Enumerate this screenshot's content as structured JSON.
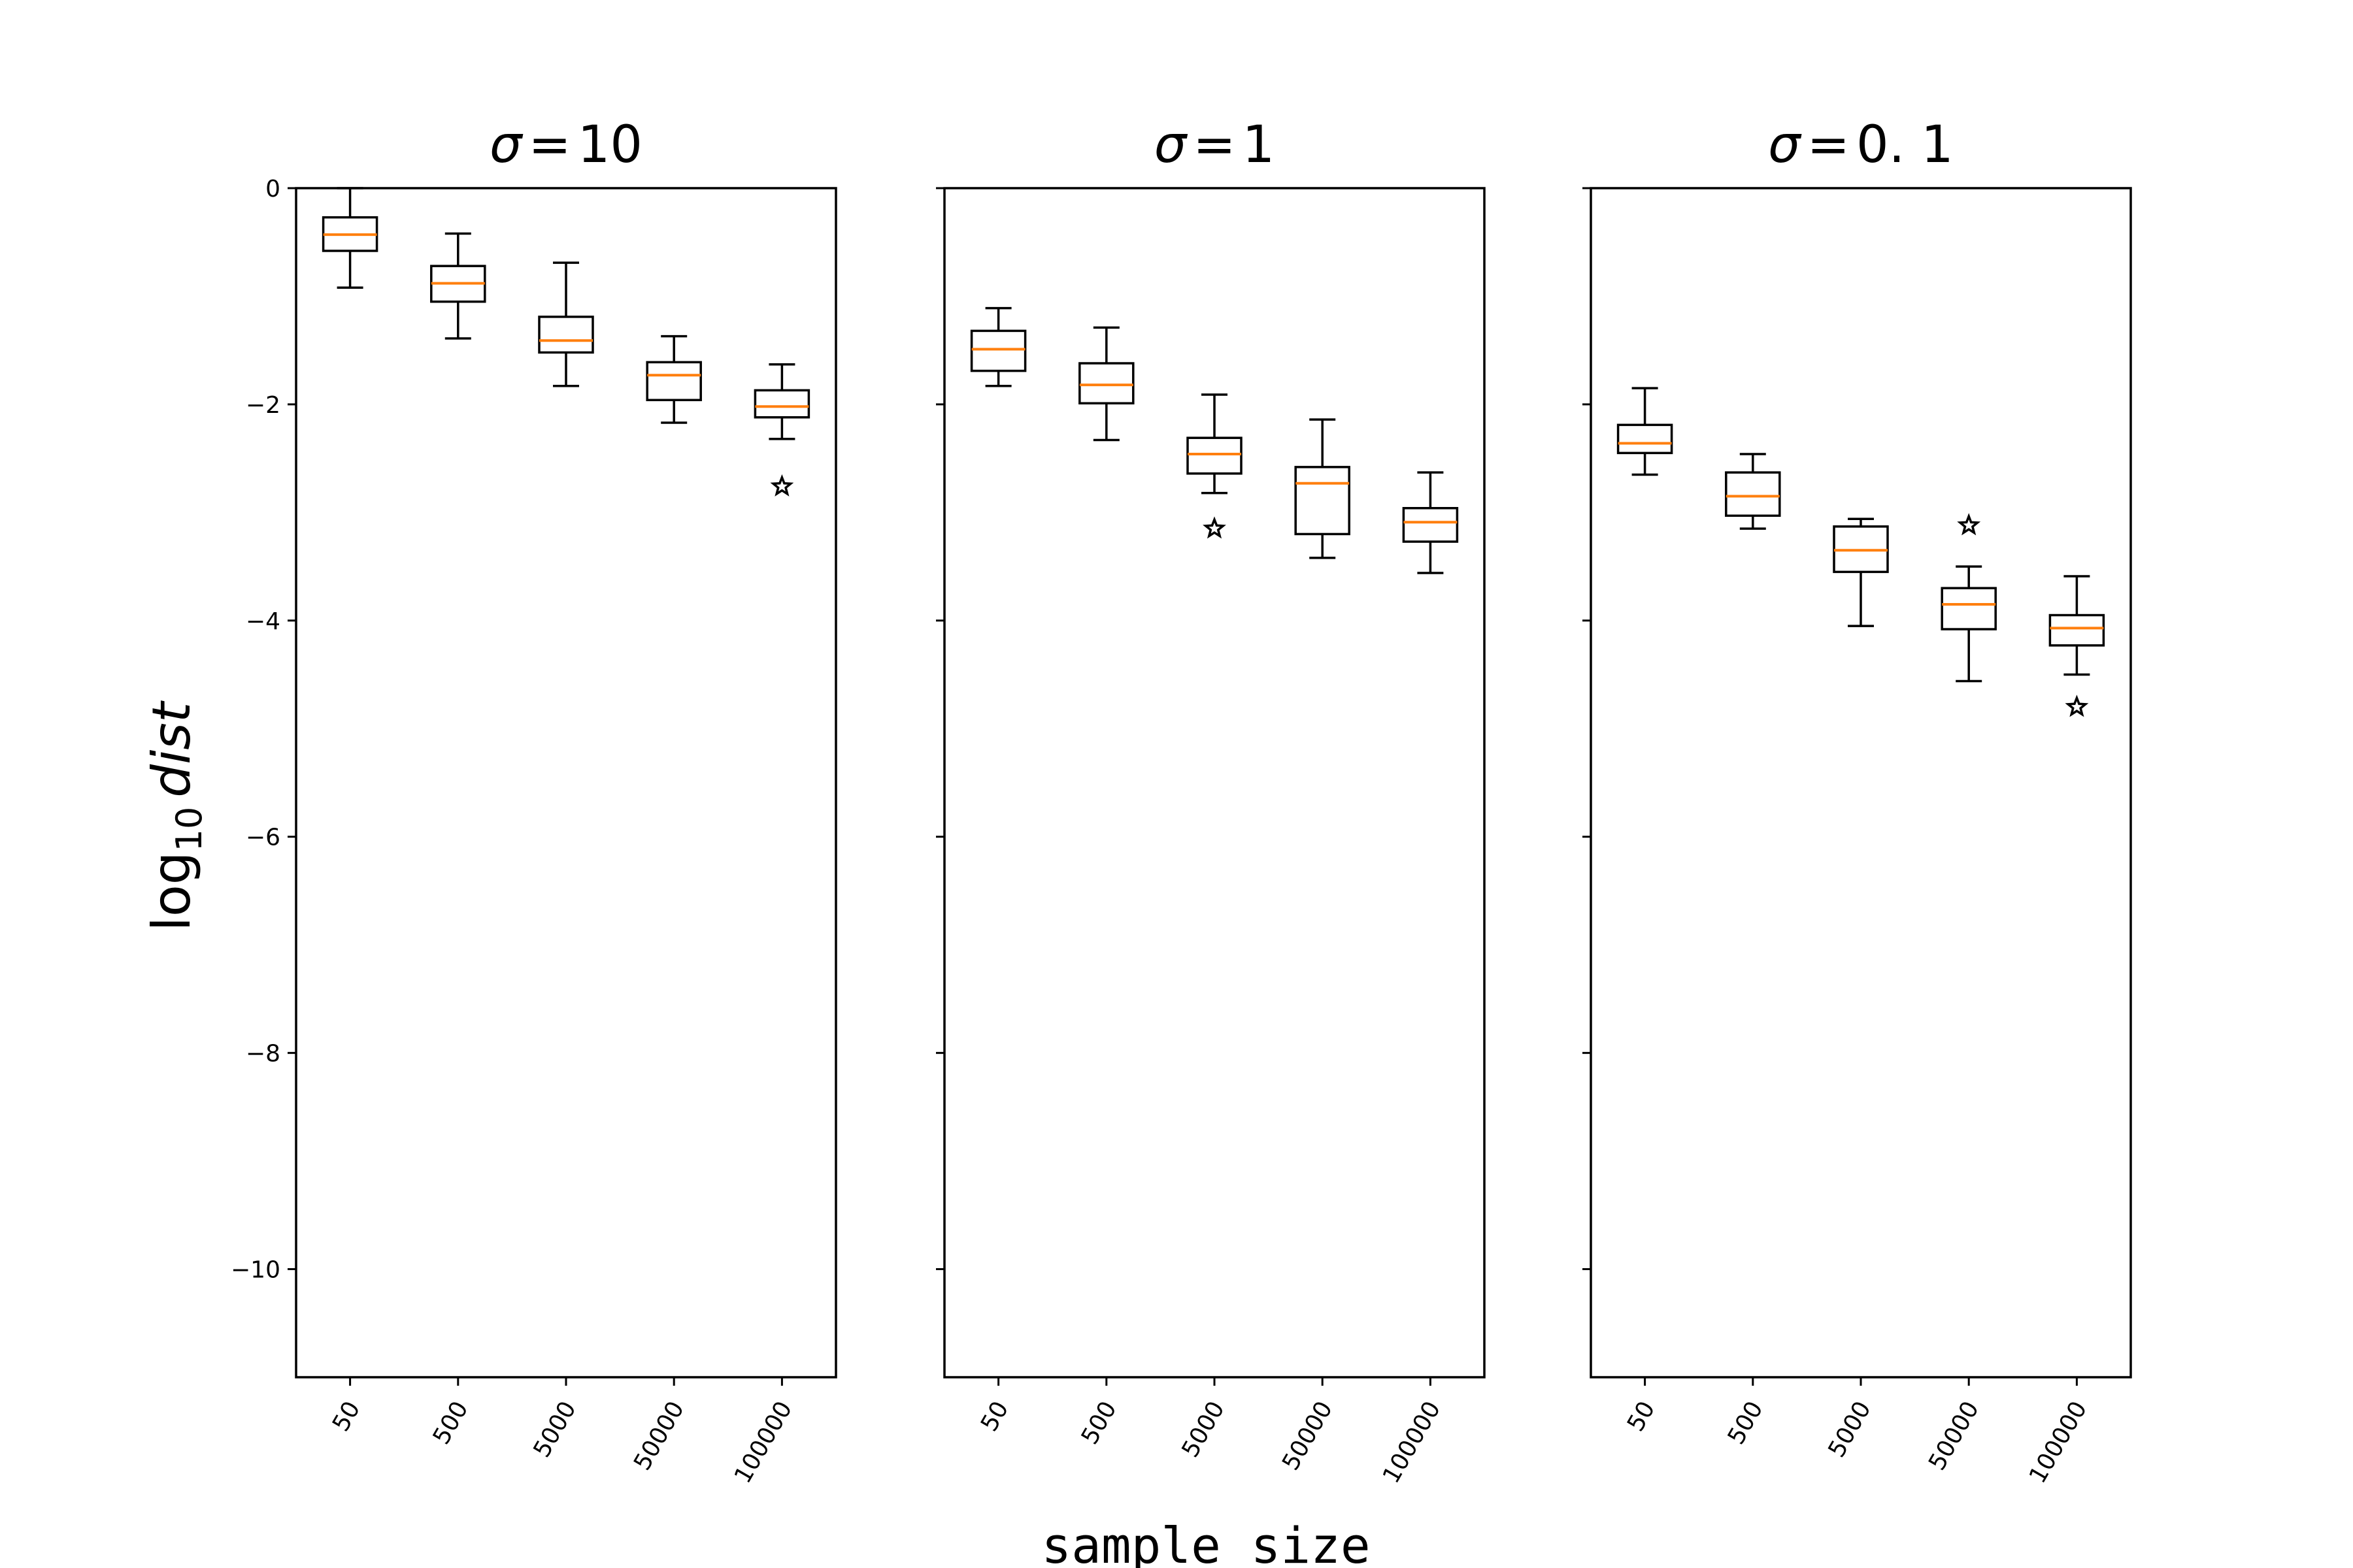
{
  "chart_data": {
    "type": "boxplot",
    "ylabel": "log10 dist",
    "ylabel_parts": {
      "base": "log",
      "subscript": "10",
      "var": "dist"
    },
    "xlabel": "sample size",
    "ylim": [
      -11,
      0
    ],
    "yticks": [
      0,
      -2,
      -4,
      -6,
      -8,
      -10
    ],
    "ytick_labels": [
      "0",
      "−2",
      "−4",
      "−6",
      "−8",
      "−10"
    ],
    "categories": [
      "50",
      "500",
      "5000",
      "50000",
      "100000"
    ],
    "colors": {
      "median": "#ff7f0e",
      "box": "#000000"
    },
    "panels": [
      {
        "title_prefix": "σ",
        "title_value": "10",
        "boxes": [
          {
            "whislo": -0.92,
            "q1": -0.58,
            "med": -0.43,
            "q3": -0.27,
            "whishi": 0.0,
            "fliers": []
          },
          {
            "whislo": -1.39,
            "q1": -1.05,
            "med": -0.88,
            "q3": -0.72,
            "whishi": -0.42,
            "fliers": []
          },
          {
            "whislo": -1.83,
            "q1": -1.52,
            "med": -1.41,
            "q3": -1.19,
            "whishi": -0.69,
            "fliers": []
          },
          {
            "whislo": -2.17,
            "q1": -1.96,
            "med": -1.73,
            "q3": -1.61,
            "whishi": -1.37,
            "fliers": []
          },
          {
            "whislo": -2.32,
            "q1": -2.12,
            "med": -2.02,
            "q3": -1.87,
            "whishi": -1.63,
            "fliers": [
              -2.76
            ]
          }
        ]
      },
      {
        "title_prefix": "σ",
        "title_value": "1",
        "boxes": [
          {
            "whislo": -1.83,
            "q1": -1.69,
            "med": -1.49,
            "q3": -1.32,
            "whishi": -1.11,
            "fliers": []
          },
          {
            "whislo": -2.33,
            "q1": -1.99,
            "med": -1.82,
            "q3": -1.62,
            "whishi": -1.29,
            "fliers": []
          },
          {
            "whislo": -2.82,
            "q1": -2.64,
            "med": -2.46,
            "q3": -2.31,
            "whishi": -1.91,
            "fliers": [
              -3.15
            ]
          },
          {
            "whislo": -3.42,
            "q1": -3.2,
            "med": -2.73,
            "q3": -2.58,
            "whishi": -2.14,
            "fliers": []
          },
          {
            "whislo": -3.56,
            "q1": -3.27,
            "med": -3.09,
            "q3": -2.96,
            "whishi": -2.63,
            "fliers": []
          }
        ]
      },
      {
        "title_prefix": "σ",
        "title_value": "0. 1",
        "boxes": [
          {
            "whislo": -2.65,
            "q1": -2.45,
            "med": -2.36,
            "q3": -2.19,
            "whishi": -1.85,
            "fliers": []
          },
          {
            "whislo": -3.15,
            "q1": -3.03,
            "med": -2.85,
            "q3": -2.63,
            "whishi": -2.46,
            "fliers": []
          },
          {
            "whislo": -4.05,
            "q1": -3.55,
            "med": -3.35,
            "q3": -3.13,
            "whishi": -3.06,
            "fliers": []
          },
          {
            "whislo": -4.56,
            "q1": -4.08,
            "med": -3.85,
            "q3": -3.7,
            "whishi": -3.5,
            "fliers": [
              -3.12
            ]
          },
          {
            "whislo": -4.5,
            "q1": -4.23,
            "med": -4.07,
            "q3": -3.95,
            "whishi": -3.59,
            "fliers": [
              -4.8
            ]
          }
        ]
      }
    ]
  }
}
